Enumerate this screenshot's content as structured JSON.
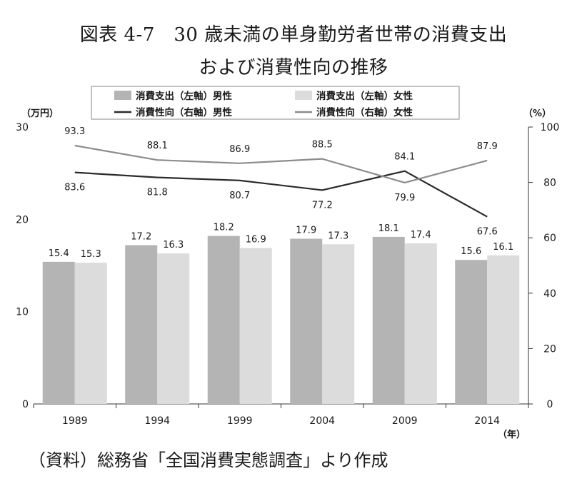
{
  "page": {
    "title_line1": "図表 4-7　30 歳未満の単身勤労者世帯の消費支出",
    "title_line2": "および消費性向の推移",
    "source": "（資料）総務省「全国消費実態調査」より作成"
  },
  "chart_data": {
    "type": "bar",
    "title": "図表 4-7　30 歳未満の単身勤労者世帯の消費支出 および消費性向の推移",
    "categories": [
      "1989",
      "1994",
      "1999",
      "2004",
      "2009",
      "2014"
    ],
    "xlabel": "（年）",
    "y_left_label": "（万円）",
    "y_right_label": "（%）",
    "y_left_lim": [
      0,
      30
    ],
    "y_left_ticks": [
      0,
      10,
      20,
      30
    ],
    "y_right_lim": [
      0,
      100
    ],
    "y_right_ticks": [
      0,
      20,
      40,
      60,
      80,
      100
    ],
    "grid": false,
    "legend_position": "top",
    "series": [
      {
        "name": "消費支出（左軸）男性",
        "kind": "bar",
        "axis": "left",
        "color": "#b4b4b4",
        "values": [
          15.4,
          17.2,
          18.2,
          17.9,
          18.1,
          15.6
        ],
        "labels": [
          "15.4",
          "17.2",
          "18.2",
          "17.9",
          "18.1",
          "15.6"
        ]
      },
      {
        "name": "消費支出（左軸）女性",
        "kind": "bar",
        "axis": "left",
        "color": "#dcdcdc",
        "values": [
          15.3,
          16.3,
          16.9,
          17.3,
          17.4,
          16.1
        ],
        "labels": [
          "15.3",
          "16.3",
          "16.9",
          "17.3",
          "17.4",
          "16.1"
        ]
      },
      {
        "name": "消費性向（右軸）男性",
        "kind": "line",
        "axis": "right",
        "color": "#2b2b2b",
        "values": [
          83.6,
          81.8,
          80.7,
          77.2,
          84.1,
          67.6
        ],
        "labels": [
          "83.6",
          "81.8",
          "80.7",
          "77.2",
          "84.1",
          "67.6"
        ]
      },
      {
        "name": "消費性向（右軸）女性",
        "kind": "line",
        "axis": "right",
        "color": "#8c8c8c",
        "values": [
          93.3,
          88.1,
          86.9,
          88.5,
          79.9,
          87.9
        ],
        "labels": [
          "93.3",
          "88.1",
          "86.9",
          "88.5",
          "79.9",
          "87.9"
        ]
      }
    ]
  }
}
